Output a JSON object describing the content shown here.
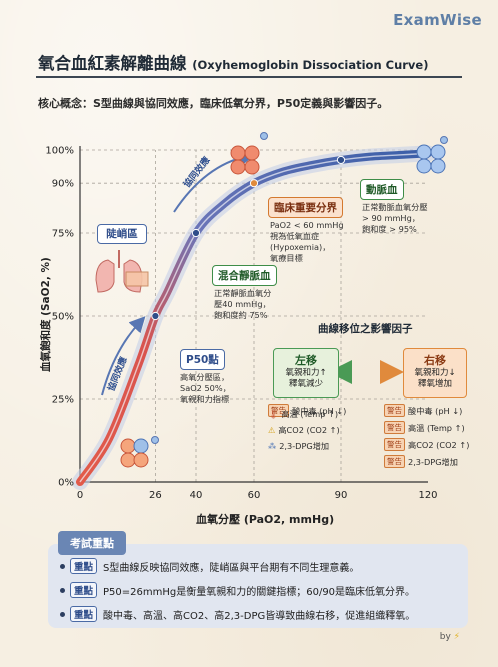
{
  "brand": "ExamWise",
  "title": {
    "zh": "氧合血紅素解離曲線",
    "en": "(Oxyhemoglobin Dissociation Curve)"
  },
  "concept": "核心概念：S型曲線與協同效應，臨床低氧分界，P50定義與影響因子。",
  "chart_data": {
    "type": "line",
    "xlabel": "血氧分壓 (PaO2, mmHg)",
    "ylabel": "血氧飽和度 (SaO2, %)",
    "x_ticks": [
      "0",
      "26",
      "40",
      "60",
      "90",
      "120"
    ],
    "y_ticks": [
      "0%",
      "25%",
      "50%",
      "75%",
      "90%",
      "100%"
    ],
    "xlim": [
      0,
      120
    ],
    "ylim": [
      0,
      100
    ],
    "series": [
      {
        "x": [
          0,
          10,
          20,
          26,
          30,
          40,
          50,
          60,
          70,
          80,
          90,
          100,
          110,
          120
        ],
        "y": [
          0,
          13,
          35,
          50,
          57,
          75,
          84,
          90,
          93.5,
          95.5,
          97,
          98,
          98.5,
          99
        ]
      }
    ],
    "points": [
      {
        "x": 26,
        "y": 50
      },
      {
        "x": 40,
        "y": 75
      },
      {
        "x": 60,
        "y": 90
      },
      {
        "x": 90,
        "y": 97
      }
    ],
    "arrow_labels": {
      "upper": "協同效應",
      "lower": "協同效應"
    }
  },
  "callouts": {
    "steep": {
      "title": "陡峭區"
    },
    "p50": {
      "title": "P50點",
      "lines": [
        "高氧分壓區，",
        "SaO2 50%，",
        "氧親和力指標"
      ]
    },
    "venous": {
      "title": "混合靜脈血",
      "lines": [
        "正常靜脈血氧分",
        "壓40 mmHg，",
        "飽和度約 75%"
      ]
    },
    "clinical": {
      "title": "臨床重要分界",
      "lines": [
        "PaO2 < 60 mmHg",
        "視為低氧血症",
        "(Hypoxemia)，",
        "氧療目標"
      ]
    },
    "arterial": {
      "title": "動脈血",
      "lines": [
        "正常動脈血氧分壓",
        "> 90 mmHg，",
        "飽和度 > 95%"
      ]
    }
  },
  "shift": {
    "title": "曲線移位之影響因子",
    "left": {
      "title": "左移",
      "lines": [
        "氧親和力↑",
        "釋氧減少"
      ]
    },
    "right": {
      "title": "右移",
      "lines": [
        "氧親和力↓",
        "釋氧增加"
      ]
    },
    "warn_tag": "警告",
    "left_factors": [
      "酸中毒 (pH ↓)",
      "高溫 (Temp ↑)",
      "高CO2 (CO2 ↑)",
      "2,3-DPG增加"
    ],
    "right_factors": [
      "酸中毒 (pH ↓)",
      "高溫 (Temp ↑)",
      "高CO2 (CO2 ↑)",
      "2,3-DPG增加"
    ]
  },
  "key_points": {
    "title": "考試重點",
    "tag": "重點",
    "items": [
      "S型曲線反映協同效應，陡峭區與平台期有不同生理意義。",
      "P50=26mmHg是衡量氧親和力的關鍵指標；60/90是臨床低氧分界。",
      "酸中毒、高溫、高CO2、高2,3-DPG皆導致曲線右移，促進組織釋氧。"
    ]
  },
  "byline": "by",
  "colors": {
    "accent": "#5f7fa6",
    "curve_red": "#d9534f",
    "curve_blue": "#3b5fa8",
    "green": "#3e8d48",
    "orange": "#e08a3c"
  }
}
